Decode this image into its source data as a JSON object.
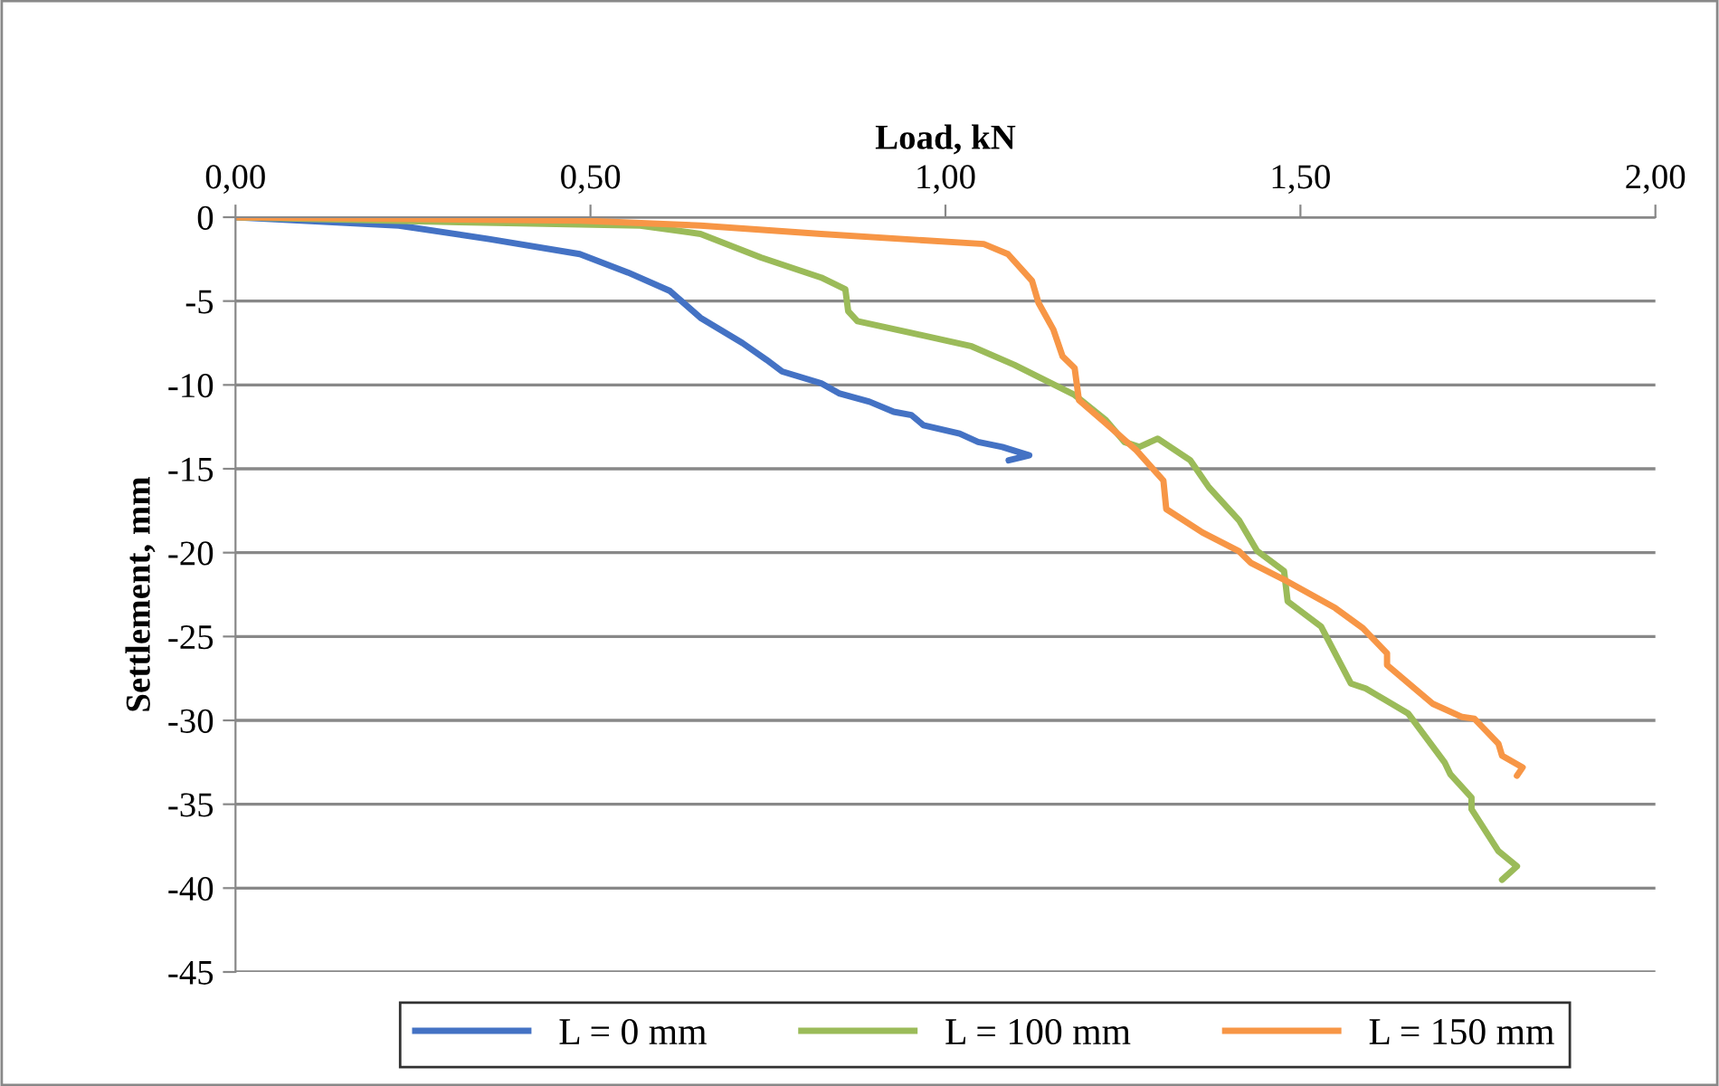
{
  "chart_data": {
    "type": "line",
    "xlabel": "Load, kN",
    "ylabel": "Settlement, mm",
    "xlim": [
      0,
      2
    ],
    "xticks": [
      {
        "value": 0,
        "label": "0,00"
      },
      {
        "value": 0.5,
        "label": "0,50"
      },
      {
        "value": 1,
        "label": "1,00"
      },
      {
        "value": 1.5,
        "label": "1,50"
      },
      {
        "value": 2,
        "label": "2,00"
      }
    ],
    "ylim": [
      -45,
      0
    ],
    "yticks": [
      -45,
      -40,
      -35,
      -30,
      -25,
      -20,
      -15,
      -10,
      -5,
      0
    ],
    "grid": "y",
    "legend": "bottom",
    "marker": "none",
    "line_style": "solid",
    "series": [
      {
        "name": "L = 0 mm",
        "color": "#4472c4",
        "x": [
          0,
          0.23,
          0.357,
          0.485,
          0.553,
          0.612,
          0.655,
          0.714,
          0.748,
          0.77,
          0.825,
          0.85,
          0.893,
          0.927,
          0.952,
          0.969,
          1.02,
          1.046,
          1.08,
          1.118,
          1.089
        ],
        "values": [
          0,
          -0.5,
          -1.3,
          -2.2,
          -3.3,
          -4.4,
          -6.0,
          -7.5,
          -8.5,
          -9.2,
          -9.9,
          -10.5,
          -11.0,
          -11.6,
          -11.8,
          -12.4,
          -12.9,
          -13.4,
          -13.7,
          -14.2,
          -14.5
        ]
      },
      {
        "name": "L = 100 mm",
        "color": "#9bbb59",
        "x": [
          0,
          0.315,
          0.57,
          0.655,
          0.74,
          0.825,
          0.859,
          0.863,
          0.876,
          0.952,
          1.037,
          1.097,
          1.182,
          1.226,
          1.252,
          1.273,
          1.299,
          1.345,
          1.371,
          1.414,
          1.439,
          1.477,
          1.482,
          1.529,
          1.571,
          1.592,
          1.652,
          1.703,
          1.711,
          1.741,
          1.741,
          1.779,
          1.805,
          1.784
        ],
        "values": [
          0,
          -0.3,
          -0.5,
          -1.0,
          -2.4,
          -3.6,
          -4.3,
          -5.6,
          -6.2,
          -6.9,
          -7.7,
          -8.8,
          -10.6,
          -12.1,
          -13.4,
          -13.7,
          -13.2,
          -14.5,
          -16.1,
          -18.1,
          -19.9,
          -21.1,
          -22.9,
          -24.4,
          -27.8,
          -28.1,
          -29.6,
          -32.5,
          -33.2,
          -34.6,
          -35.3,
          -37.8,
          -38.7,
          -39.5
        ]
      },
      {
        "name": "L = 150 mm",
        "color": "#f79646",
        "x": [
          0,
          0.485,
          0.655,
          0.825,
          1.054,
          1.088,
          1.122,
          1.131,
          1.152,
          1.165,
          1.182,
          1.188,
          1.226,
          1.269,
          1.307,
          1.311,
          1.362,
          1.413,
          1.43,
          1.481,
          1.549,
          1.588,
          1.622,
          1.622,
          1.686,
          1.728,
          1.745,
          1.779,
          1.784,
          1.813,
          1.805
        ],
        "values": [
          0,
          -0.2,
          -0.5,
          -1.0,
          -1.6,
          -2.2,
          -3.8,
          -5.1,
          -6.7,
          -8.3,
          -9.0,
          -10.9,
          -12.3,
          -13.9,
          -15.7,
          -17.4,
          -18.8,
          -19.9,
          -20.6,
          -21.7,
          -23.3,
          -24.5,
          -26.0,
          -26.7,
          -29.0,
          -29.8,
          -29.9,
          -31.4,
          -32.1,
          -32.8,
          -33.3
        ]
      }
    ]
  }
}
